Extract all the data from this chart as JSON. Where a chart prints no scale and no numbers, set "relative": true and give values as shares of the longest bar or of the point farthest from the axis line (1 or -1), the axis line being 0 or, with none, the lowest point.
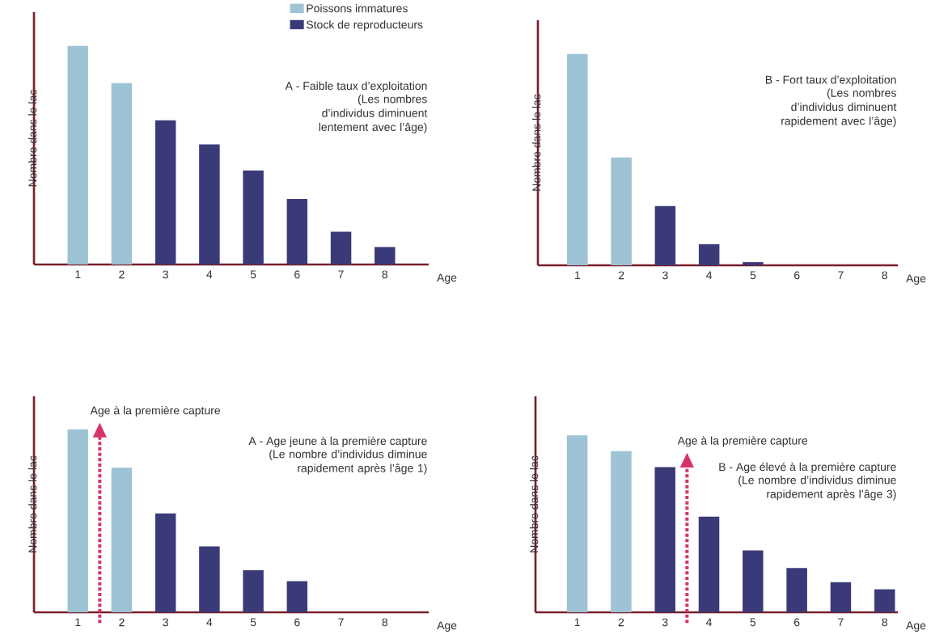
{
  "chart_data": [
    {
      "type": "bar",
      "relative": true,
      "ylabel": "Nombre dans le lac",
      "xlabel": "Age",
      "x": [
        1,
        2,
        3,
        4,
        5,
        6,
        7,
        8
      ],
      "xlim": [
        0,
        9
      ],
      "xticks": [
        1,
        2,
        3,
        4,
        5,
        6,
        7,
        8
      ],
      "legend": "top right",
      "series": [
        {
          "name": "Poissons immatures",
          "color": "#9dc3d4",
          "values": [
            1,
            0.83,
            null,
            null,
            null,
            null,
            null,
            null
          ]
        },
        {
          "name": "Stock de reproducteurs",
          "color": "#3b3a78",
          "values": [
            null,
            null,
            0.66,
            0.55,
            0.43,
            0.3,
            0.15,
            0.08
          ]
        }
      ],
      "annotations": [
        "A - Faible taux d’exploitation",
        "(Les nombres d’individus diminuent lentement avec l’âge)"
      ]
    },
    {
      "type": "bar",
      "relative": true,
      "ylabel": "Nombre dans le lac",
      "xlabel": "Age",
      "x": [
        1,
        2,
        3,
        4,
        5,
        6,
        7,
        8
      ],
      "xlim": [
        0.1,
        8.3
      ],
      "xticks": [
        1,
        2,
        3,
        4,
        5,
        6,
        7,
        8
      ],
      "series": [
        {
          "color": "#9dc3d4",
          "values": [
            1,
            0.51,
            null,
            null,
            null,
            null,
            null,
            null
          ]
        },
        {
          "color": "#3b3a78",
          "values": [
            null,
            null,
            0.28,
            0.1,
            0.015,
            0,
            0,
            0
          ]
        }
      ],
      "annotations": [
        "B - Fort taux d’exploitation",
        "(Les nombres d’individus diminuent rapidement avec l’âge)"
      ]
    },
    {
      "type": "bar",
      "relative": true,
      "ylabel": "Nombre dans le lac",
      "xlabel": "Age",
      "x": [
        1,
        2,
        3,
        4,
        5,
        6,
        7,
        8
      ],
      "xlim": [
        0,
        9
      ],
      "xticks": [
        1,
        2,
        3,
        4,
        5,
        6,
        7,
        8
      ],
      "series": [
        {
          "color": "#9dc3d4",
          "values": [
            1,
            0.79,
            null,
            null,
            null,
            null,
            null,
            null
          ]
        },
        {
          "color": "#3b3a78",
          "values": [
            null,
            null,
            0.54,
            0.36,
            0.23,
            0.17,
            0,
            0
          ]
        }
      ],
      "ref_lines": [
        {
          "axis": "x",
          "value": 1.5,
          "label": "Age à la première capture",
          "color": "#d6336c",
          "line_style": "dotted"
        }
      ],
      "annotations": [
        "A - Age jeune à la première capture",
        "(Le nombre d’individus diminue rapidement après l’âge 1)"
      ]
    },
    {
      "type": "bar",
      "relative": true,
      "ylabel": "Nombre dans le lac",
      "xlabel": "Age",
      "x": [
        1,
        2,
        3,
        4,
        5,
        6,
        7,
        8
      ],
      "xlim": [
        0.05,
        8.3
      ],
      "xticks": [
        1,
        2,
        3,
        4,
        5,
        6,
        7,
        8
      ],
      "series": [
        {
          "color": "#9dc3d4",
          "values": [
            1,
            0.91,
            null,
            null,
            null,
            null,
            null,
            null
          ]
        },
        {
          "color": "#3b3a78",
          "values": [
            null,
            null,
            0.82,
            0.54,
            0.35,
            0.25,
            0.17,
            0.13
          ]
        }
      ],
      "ref_lines": [
        {
          "axis": "x",
          "value": 3.5,
          "label": "Age à la première capture",
          "color": "#d6336c",
          "line_style": "dotted"
        }
      ],
      "annotations": [
        "B - Age élevé à la première capture",
        "(Le nombre d’individus diminue rapidement après l’âge 3)"
      ]
    }
  ]
}
